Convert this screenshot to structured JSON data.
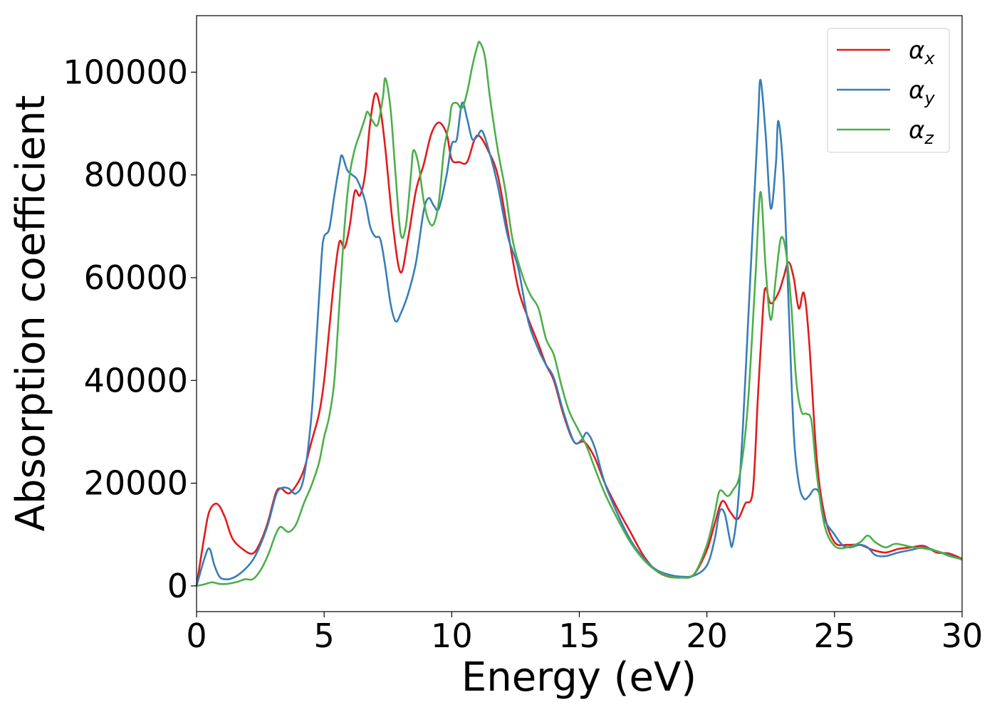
{
  "chart_data": {
    "type": "line",
    "title": "",
    "xlabel": "Energy (eV)",
    "ylabel": "Absorption coefficient",
    "xlim": [
      0,
      30
    ],
    "ylim": [
      -5000,
      111000
    ],
    "xticks": [
      0,
      5,
      10,
      15,
      20,
      25,
      30
    ],
    "yticks": [
      0,
      20000,
      40000,
      60000,
      80000,
      100000
    ],
    "grid": false,
    "legend_position": "top-right",
    "series": [
      {
        "name": "α_x",
        "legend_symbol": "α",
        "legend_sub": "x",
        "color": "#e41a1c",
        "points": [
          [
            0,
            0
          ],
          [
            0.3,
            9500
          ],
          [
            0.5,
            14500
          ],
          [
            0.8,
            16000
          ],
          [
            1.1,
            13500
          ],
          [
            1.4,
            9300
          ],
          [
            1.8,
            7200
          ],
          [
            2.2,
            6300
          ],
          [
            2.5,
            8500
          ],
          [
            2.8,
            12500
          ],
          [
            3.1,
            18000
          ],
          [
            3.3,
            19000
          ],
          [
            3.6,
            18000
          ],
          [
            3.9,
            19500
          ],
          [
            4.2,
            22500
          ],
          [
            4.5,
            28000
          ],
          [
            4.8,
            33500
          ],
          [
            5.0,
            40000
          ],
          [
            5.2,
            50000
          ],
          [
            5.4,
            60000
          ],
          [
            5.6,
            67000
          ],
          [
            5.8,
            65800
          ],
          [
            6.0,
            70000
          ],
          [
            6.2,
            76800
          ],
          [
            6.4,
            76000
          ],
          [
            6.6,
            80000
          ],
          [
            6.8,
            90000
          ],
          [
            7.0,
            95800
          ],
          [
            7.2,
            93000
          ],
          [
            7.4,
            85000
          ],
          [
            7.7,
            70000
          ],
          [
            8.0,
            61000
          ],
          [
            8.3,
            68000
          ],
          [
            8.6,
            77000
          ],
          [
            8.9,
            82000
          ],
          [
            9.2,
            88000
          ],
          [
            9.5,
            90200
          ],
          [
            9.8,
            88000
          ],
          [
            10.0,
            83000
          ],
          [
            10.3,
            82500
          ],
          [
            10.6,
            82500
          ],
          [
            10.9,
            87000
          ],
          [
            11.1,
            87500
          ],
          [
            11.4,
            85000
          ],
          [
            11.8,
            80000
          ],
          [
            12.2,
            69000
          ],
          [
            12.6,
            58000
          ],
          [
            13.0,
            52000
          ],
          [
            13.4,
            47000
          ],
          [
            13.7,
            43000
          ],
          [
            14.0,
            40000
          ],
          [
            14.4,
            33000
          ],
          [
            14.8,
            28000
          ],
          [
            15.2,
            28000
          ],
          [
            15.6,
            25000
          ],
          [
            16.0,
            20000
          ],
          [
            16.5,
            15000
          ],
          [
            17.0,
            10500
          ],
          [
            17.5,
            6000
          ],
          [
            18.0,
            3000
          ],
          [
            18.5,
            1800
          ],
          [
            19.0,
            1700
          ],
          [
            19.5,
            2300
          ],
          [
            20.0,
            7000
          ],
          [
            20.3,
            12000
          ],
          [
            20.6,
            16500
          ],
          [
            20.9,
            14500
          ],
          [
            21.2,
            13000
          ],
          [
            21.5,
            16000
          ],
          [
            21.8,
            18500
          ],
          [
            22.0,
            37000
          ],
          [
            22.2,
            54000
          ],
          [
            22.3,
            58000
          ],
          [
            22.5,
            55000
          ],
          [
            22.8,
            57000
          ],
          [
            23.0,
            60000
          ],
          [
            23.2,
            63000
          ],
          [
            23.4,
            60000
          ],
          [
            23.6,
            54000
          ],
          [
            23.8,
            57000
          ],
          [
            24.0,
            48000
          ],
          [
            24.3,
            25000
          ],
          [
            24.6,
            14000
          ],
          [
            25.0,
            8500
          ],
          [
            25.5,
            8000
          ],
          [
            26.0,
            8000
          ],
          [
            26.5,
            7000
          ],
          [
            27.0,
            6500
          ],
          [
            27.5,
            7200
          ],
          [
            28.0,
            7500
          ],
          [
            28.5,
            7800
          ],
          [
            29.0,
            6500
          ],
          [
            29.5,
            6300
          ],
          [
            30.0,
            5300
          ]
        ]
      },
      {
        "name": "α_y",
        "legend_symbol": "α",
        "legend_sub": "y",
        "color": "#377eb8",
        "points": [
          [
            0,
            0
          ],
          [
            0.3,
            5200
          ],
          [
            0.5,
            7300
          ],
          [
            0.7,
            4000
          ],
          [
            0.9,
            1800
          ],
          [
            1.1,
            1300
          ],
          [
            1.4,
            1500
          ],
          [
            1.8,
            2800
          ],
          [
            2.2,
            5000
          ],
          [
            2.5,
            8000
          ],
          [
            2.8,
            12000
          ],
          [
            3.1,
            17500
          ],
          [
            3.3,
            19000
          ],
          [
            3.6,
            19000
          ],
          [
            3.9,
            18000
          ],
          [
            4.2,
            21000
          ],
          [
            4.5,
            33000
          ],
          [
            4.7,
            48000
          ],
          [
            4.9,
            64000
          ],
          [
            5.0,
            68000
          ],
          [
            5.2,
            69500
          ],
          [
            5.4,
            76000
          ],
          [
            5.6,
            82000
          ],
          [
            5.7,
            83800
          ],
          [
            5.9,
            81000
          ],
          [
            6.1,
            80000
          ],
          [
            6.3,
            79000
          ],
          [
            6.6,
            75000
          ],
          [
            6.8,
            70000
          ],
          [
            7.0,
            68000
          ],
          [
            7.2,
            67500
          ],
          [
            7.4,
            62000
          ],
          [
            7.6,
            55000
          ],
          [
            7.8,
            51500
          ],
          [
            8.0,
            53000
          ],
          [
            8.3,
            57000
          ],
          [
            8.6,
            63000
          ],
          [
            8.9,
            73000
          ],
          [
            9.1,
            75500
          ],
          [
            9.3,
            74000
          ],
          [
            9.5,
            73500
          ],
          [
            9.8,
            80000
          ],
          [
            10.0,
            86000
          ],
          [
            10.2,
            87000
          ],
          [
            10.4,
            94000
          ],
          [
            10.6,
            91000
          ],
          [
            10.8,
            87000
          ],
          [
            11.0,
            87500
          ],
          [
            11.2,
            88500
          ],
          [
            11.5,
            84000
          ],
          [
            11.8,
            78000
          ],
          [
            12.2,
            68000
          ],
          [
            12.6,
            62000
          ],
          [
            13.0,
            51500
          ],
          [
            13.4,
            46000
          ],
          [
            13.7,
            43000
          ],
          [
            14.0,
            40500
          ],
          [
            14.4,
            33500
          ],
          [
            14.8,
            28000
          ],
          [
            15.1,
            28500
          ],
          [
            15.3,
            29800
          ],
          [
            15.6,
            27000
          ],
          [
            16.0,
            20000
          ],
          [
            16.5,
            14000
          ],
          [
            17.0,
            9000
          ],
          [
            17.5,
            5500
          ],
          [
            18.0,
            3200
          ],
          [
            18.5,
            2200
          ],
          [
            19.0,
            1800
          ],
          [
            19.5,
            2000
          ],
          [
            20.0,
            4000
          ],
          [
            20.3,
            9000
          ],
          [
            20.5,
            14500
          ],
          [
            20.7,
            14000
          ],
          [
            20.9,
            9000
          ],
          [
            21.0,
            8000
          ],
          [
            21.2,
            15000
          ],
          [
            21.4,
            30000
          ],
          [
            21.6,
            50000
          ],
          [
            21.8,
            70000
          ],
          [
            22.0,
            90000
          ],
          [
            22.1,
            98500
          ],
          [
            22.3,
            88000
          ],
          [
            22.5,
            73500
          ],
          [
            22.7,
            82000
          ],
          [
            22.8,
            90500
          ],
          [
            23.0,
            80000
          ],
          [
            23.2,
            55000
          ],
          [
            23.4,
            30000
          ],
          [
            23.6,
            20000
          ],
          [
            23.8,
            17000
          ],
          [
            24.0,
            17500
          ],
          [
            24.2,
            18800
          ],
          [
            24.4,
            18000
          ],
          [
            24.6,
            13000
          ],
          [
            25.0,
            10000
          ],
          [
            25.3,
            8000
          ],
          [
            25.6,
            7500
          ],
          [
            26.0,
            8000
          ],
          [
            26.3,
            7500
          ],
          [
            26.6,
            6000
          ],
          [
            27.0,
            5800
          ],
          [
            27.5,
            6500
          ],
          [
            28.0,
            7000
          ],
          [
            28.5,
            7500
          ],
          [
            29.0,
            6800
          ],
          [
            29.5,
            6000
          ],
          [
            30.0,
            5100
          ]
        ]
      },
      {
        "name": "α_z",
        "legend_symbol": "α",
        "legend_sub": "z",
        "color": "#4daf4a",
        "points": [
          [
            0,
            0
          ],
          [
            0.3,
            300
          ],
          [
            0.6,
            700
          ],
          [
            0.9,
            400
          ],
          [
            1.2,
            400
          ],
          [
            1.6,
            800
          ],
          [
            1.9,
            1300
          ],
          [
            2.2,
            1300
          ],
          [
            2.5,
            3000
          ],
          [
            2.8,
            6000
          ],
          [
            3.1,
            10000
          ],
          [
            3.3,
            11500
          ],
          [
            3.6,
            10500
          ],
          [
            3.9,
            12000
          ],
          [
            4.2,
            16000
          ],
          [
            4.5,
            19500
          ],
          [
            4.8,
            24000
          ],
          [
            5.0,
            29000
          ],
          [
            5.2,
            33000
          ],
          [
            5.4,
            40000
          ],
          [
            5.6,
            55000
          ],
          [
            5.8,
            70000
          ],
          [
            6.0,
            80000
          ],
          [
            6.2,
            85000
          ],
          [
            6.4,
            88000
          ],
          [
            6.6,
            91000
          ],
          [
            6.7,
            92300
          ],
          [
            6.9,
            90500
          ],
          [
            7.1,
            89800
          ],
          [
            7.3,
            95000
          ],
          [
            7.4,
            98800
          ],
          [
            7.6,
            93000
          ],
          [
            7.8,
            80000
          ],
          [
            8.0,
            68500
          ],
          [
            8.2,
            70000
          ],
          [
            8.4,
            80000
          ],
          [
            8.5,
            84800
          ],
          [
            8.7,
            82000
          ],
          [
            8.9,
            75000
          ],
          [
            9.1,
            71000
          ],
          [
            9.3,
            70500
          ],
          [
            9.5,
            75000
          ],
          [
            9.7,
            85000
          ],
          [
            9.9,
            90000
          ],
          [
            10.0,
            93500
          ],
          [
            10.2,
            94000
          ],
          [
            10.4,
            93000
          ],
          [
            10.6,
            96000
          ],
          [
            10.8,
            101000
          ],
          [
            11.0,
            105000
          ],
          [
            11.1,
            105800
          ],
          [
            11.3,
            103000
          ],
          [
            11.5,
            95000
          ],
          [
            11.8,
            85000
          ],
          [
            12.1,
            77000
          ],
          [
            12.4,
            67000
          ],
          [
            12.8,
            60000
          ],
          [
            13.1,
            56500
          ],
          [
            13.4,
            54000
          ],
          [
            13.7,
            48000
          ],
          [
            14.0,
            45000
          ],
          [
            14.3,
            39000
          ],
          [
            14.6,
            34000
          ],
          [
            15.0,
            30000
          ],
          [
            15.3,
            27000
          ],
          [
            15.6,
            23000
          ],
          [
            16.0,
            18000
          ],
          [
            16.5,
            13000
          ],
          [
            17.0,
            8500
          ],
          [
            17.5,
            5200
          ],
          [
            18.0,
            3000
          ],
          [
            18.5,
            1900
          ],
          [
            19.0,
            1600
          ],
          [
            19.5,
            2300
          ],
          [
            20.0,
            8000
          ],
          [
            20.3,
            14000
          ],
          [
            20.5,
            18500
          ],
          [
            20.8,
            17500
          ],
          [
            21.0,
            18500
          ],
          [
            21.3,
            22000
          ],
          [
            21.6,
            35000
          ],
          [
            21.9,
            60000
          ],
          [
            22.1,
            76700
          ],
          [
            22.3,
            62000
          ],
          [
            22.5,
            51800
          ],
          [
            22.7,
            60000
          ],
          [
            22.9,
            67700
          ],
          [
            23.1,
            65000
          ],
          [
            23.3,
            55000
          ],
          [
            23.5,
            40000
          ],
          [
            23.7,
            34000
          ],
          [
            23.9,
            33500
          ],
          [
            24.1,
            32000
          ],
          [
            24.3,
            22000
          ],
          [
            24.6,
            12000
          ],
          [
            25.0,
            7800
          ],
          [
            25.5,
            7500
          ],
          [
            26.0,
            8500
          ],
          [
            26.3,
            9800
          ],
          [
            26.6,
            8500
          ],
          [
            27.0,
            7500
          ],
          [
            27.4,
            8200
          ],
          [
            28.0,
            7600
          ],
          [
            28.5,
            7300
          ],
          [
            29.0,
            6800
          ],
          [
            29.5,
            5800
          ],
          [
            30.0,
            5200
          ]
        ]
      }
    ]
  }
}
